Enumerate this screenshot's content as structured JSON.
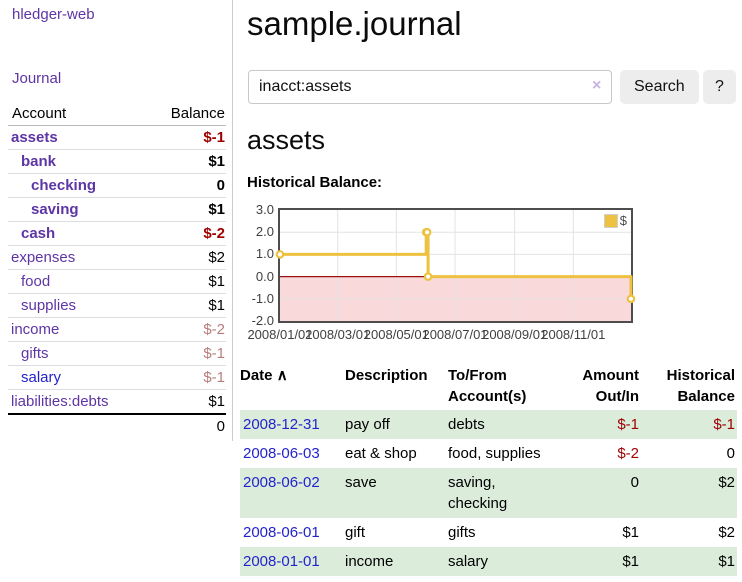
{
  "app": {
    "title": "hledger-web"
  },
  "colors": {
    "purple_link": "#5e35a5",
    "blue_link": "#2323cc",
    "negative_strong": "#9e0000",
    "negative_soft": "#b97c7c",
    "row_stripe_green": "#dbecdb",
    "chart_line": "#edc240",
    "chart_negative_fill": "#f9d9d9",
    "chart_zero_line": "#991111",
    "chart_grid": "#e3e3e3",
    "chart_border": "#4d4d4d"
  },
  "sidebar": {
    "journal_label": "Journal",
    "accounts": {
      "headers": {
        "account": "Account",
        "balance": "Balance"
      },
      "rows": [
        {
          "name": "assets",
          "balance": "$-1",
          "depth": 1,
          "bold": true,
          "balance_style": "neg-strong",
          "link_color": "purple"
        },
        {
          "name": "bank",
          "balance": "$1",
          "depth": 2,
          "bold": true,
          "balance_style": "",
          "link_color": "purple"
        },
        {
          "name": "checking",
          "balance": "0",
          "depth": 3,
          "bold": true,
          "balance_style": "",
          "link_color": "purple"
        },
        {
          "name": "saving",
          "balance": "$1",
          "depth": 3,
          "bold": true,
          "balance_style": "",
          "link_color": "purple"
        },
        {
          "name": "cash",
          "balance": "$-2",
          "depth": 2,
          "bold": true,
          "balance_style": "neg-strong",
          "link_color": "purple"
        },
        {
          "name": "expenses",
          "balance": "$2",
          "depth": 1,
          "bold": false,
          "balance_style": "",
          "link_color": "purple"
        },
        {
          "name": "food",
          "balance": "$1",
          "depth": 2,
          "bold": false,
          "balance_style": "",
          "link_color": "purple"
        },
        {
          "name": "supplies",
          "balance": "$1",
          "depth": 2,
          "bold": false,
          "balance_style": "",
          "link_color": "purple"
        },
        {
          "name": "income",
          "balance": "$-2",
          "depth": 1,
          "bold": false,
          "balance_style": "neg-soft",
          "link_color": "purple"
        },
        {
          "name": "gifts",
          "balance": "$-1",
          "depth": 2,
          "bold": false,
          "balance_style": "neg-soft",
          "link_color": "purple"
        },
        {
          "name": "salary",
          "balance": "$-1",
          "depth": 2,
          "bold": false,
          "balance_style": "neg-soft",
          "link_color": "blue"
        },
        {
          "name": "liabilities:debts",
          "balance": "$1",
          "depth": 1,
          "bold": false,
          "balance_style": "",
          "link_color": "purple"
        }
      ],
      "total_balance": "0"
    }
  },
  "main": {
    "page_title": "sample.journal",
    "search": {
      "value": "inacct:assets",
      "clear_icon": "×",
      "button_label": "Search",
      "help_label": "?"
    },
    "account_heading": "assets",
    "chart_heading": "Historical Balance:",
    "transactions": {
      "headers": {
        "date": "Date",
        "sort_icon": "∧",
        "description": "Description",
        "account": "To/From\nAccount(s)",
        "amount": "Amount\nOut/In",
        "balance": "Historical\nBalance"
      },
      "rows": [
        {
          "date": "2008-12-31",
          "description": "pay off",
          "accounts": "debts",
          "amount": "$-1",
          "balance": "$-1",
          "amount_style": "neg-strong",
          "balance_style": "neg-strong"
        },
        {
          "date": "2008-06-03",
          "description": "eat & shop",
          "accounts": "food, supplies",
          "amount": "$-2",
          "balance": "0",
          "amount_style": "neg-strong",
          "balance_style": ""
        },
        {
          "date": "2008-06-02",
          "description": "save",
          "accounts": "saving, checking",
          "amount": "0",
          "balance": "$2",
          "amount_style": "",
          "balance_style": ""
        },
        {
          "date": "2008-06-01",
          "description": "gift",
          "accounts": "gifts",
          "amount": "$1",
          "balance": "$2",
          "amount_style": "",
          "balance_style": ""
        },
        {
          "date": "2008-01-01",
          "description": "income",
          "accounts": "salary",
          "amount": "$1",
          "balance": "$1",
          "amount_style": "",
          "balance_style": ""
        }
      ]
    }
  },
  "chart_data": {
    "type": "line",
    "step": true,
    "title": "Historical Balance",
    "series": [
      {
        "name": "$",
        "color": "#edc240",
        "points": [
          {
            "x": 0,
            "date": "2008-01-01",
            "y": 1
          },
          {
            "x": 152,
            "date": "2008-06-01",
            "y": 2
          },
          {
            "x": 153,
            "date": "2008-06-02",
            "y": 2
          },
          {
            "x": 154,
            "date": "2008-06-03",
            "y": 0
          },
          {
            "x": 365,
            "date": "2008-12-31",
            "y": -1
          }
        ]
      }
    ],
    "xlim": [
      0,
      365
    ],
    "ylim": [
      -2,
      3
    ],
    "x_ticks": [
      {
        "v": 0,
        "label": "2008/01/01"
      },
      {
        "v": 60,
        "label": "2008/03/01"
      },
      {
        "v": 121,
        "label": "2008/05/01"
      },
      {
        "v": 182,
        "label": "2008/07/01"
      },
      {
        "v": 244,
        "label": "2008/09/01"
      },
      {
        "v": 305,
        "label": "2008/11/01"
      }
    ],
    "y_ticks": [
      "3.0",
      "2.0",
      "1.0",
      "0.0",
      "-1.0",
      "-2.0"
    ],
    "grid": true,
    "negative_region_shaded": true,
    "legend": {
      "label": "$",
      "position": "top-right"
    }
  }
}
